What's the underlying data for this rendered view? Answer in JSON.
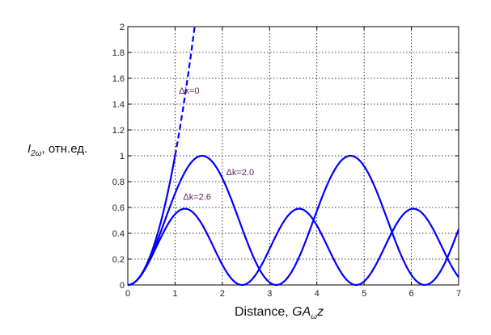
{
  "chart_data": {
    "type": "line",
    "title": "",
    "ylabel": {
      "symbol": "I",
      "subscript": "2ω",
      "unit": ", отн.ед."
    },
    "xlabel": {
      "text": "Distance, ",
      "symbol": "GA",
      "subscript": "ω",
      "var": "z"
    },
    "xlim": [
      0,
      7
    ],
    "ylim": [
      0,
      2
    ],
    "grid": true,
    "xticks": [
      0,
      1,
      2,
      3,
      4,
      5,
      6,
      7
    ],
    "yticks": [
      0,
      0.2,
      0.4,
      0.6,
      0.8,
      1,
      1.2,
      1.4,
      1.6,
      1.8,
      2
    ],
    "series": [
      {
        "name": "Δk=0",
        "style": "solid-then-dashed",
        "color": "#0000ff",
        "x": [
          0,
          0.2,
          0.4,
          0.6,
          0.8,
          1.0,
          1.1,
          1.2,
          1.3,
          1.4,
          1.48
        ],
        "y": [
          0,
          0.04,
          0.16,
          0.36,
          0.64,
          1.0,
          1.21,
          1.44,
          1.69,
          1.96,
          2.0
        ]
      },
      {
        "name": "Δk=2.0",
        "style": "solid",
        "color": "#0000ff",
        "formula": "sin^2(1.0*x)",
        "samples_x": [
          0,
          0.5,
          1.0,
          1.57,
          2.0,
          2.5,
          3.14,
          3.5,
          4.0,
          4.71,
          5.0,
          5.5,
          6.28,
          7.0
        ],
        "samples_y": [
          0,
          0.23,
          0.71,
          1.0,
          0.83,
          0.36,
          0.0,
          0.12,
          0.57,
          1.0,
          0.92,
          0.5,
          0.0,
          0.43
        ]
      },
      {
        "name": "Δk=2.6",
        "style": "solid",
        "color": "#0000ff",
        "formula": "0.59*sin^2(1.3*x)",
        "samples_x": [
          0,
          0.5,
          1.0,
          1.21,
          1.5,
          2.0,
          2.42,
          3.0,
          3.62,
          4.0,
          4.83,
          5.5,
          6.04,
          6.5,
          7.0
        ],
        "samples_y": [
          0,
          0.22,
          0.54,
          0.59,
          0.5,
          0.16,
          0.0,
          0.27,
          0.59,
          0.52,
          0.0,
          0.31,
          0.59,
          0.45,
          0.06
        ]
      }
    ],
    "annotations": [
      {
        "text": "Δk=0",
        "x": 1.08,
        "y": 1.48
      },
      {
        "text": "Δk=2.0",
        "x": 2.08,
        "y": 0.85
      },
      {
        "text": "Δk=2.6",
        "x": 1.17,
        "y": 0.66
      }
    ]
  }
}
